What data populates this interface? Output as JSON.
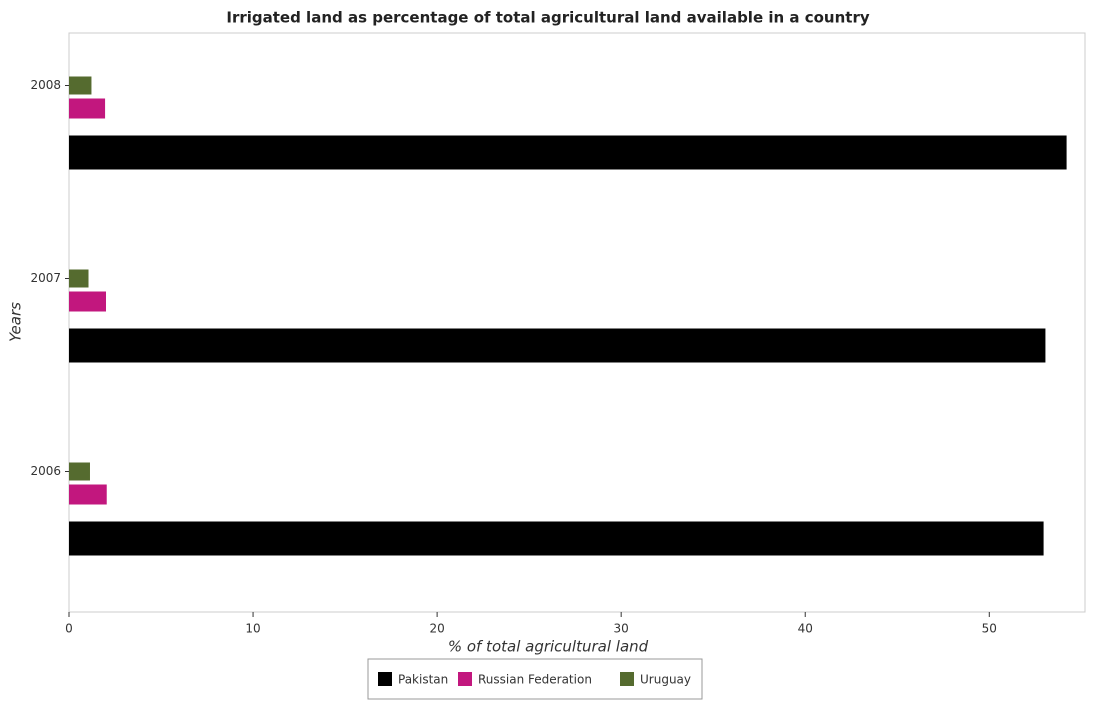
{
  "chart_data": {
    "type": "hbar",
    "title": "Irrigated land as percentage of total agricultural land available in a country",
    "x_label": "% of total agricultural land",
    "y_label": "Years",
    "categories": [
      "2006",
      "2007",
      "2008"
    ],
    "series": [
      {
        "name": "Pakistan",
        "color": "#000000",
        "values": [
          52.95,
          53.05,
          54.2
        ]
      },
      {
        "name": "Russian Federation",
        "color": "#c2177e",
        "values": [
          2.05,
          2.01,
          1.96
        ]
      },
      {
        "name": "Uruguay",
        "color": "#556b2f",
        "values": [
          1.14,
          1.06,
          1.22
        ]
      }
    ],
    "xlim": [
      0,
      55.2
    ],
    "xticks": [
      0,
      10,
      20,
      30,
      40,
      50
    ],
    "grid": false,
    "legend": "bottom"
  }
}
